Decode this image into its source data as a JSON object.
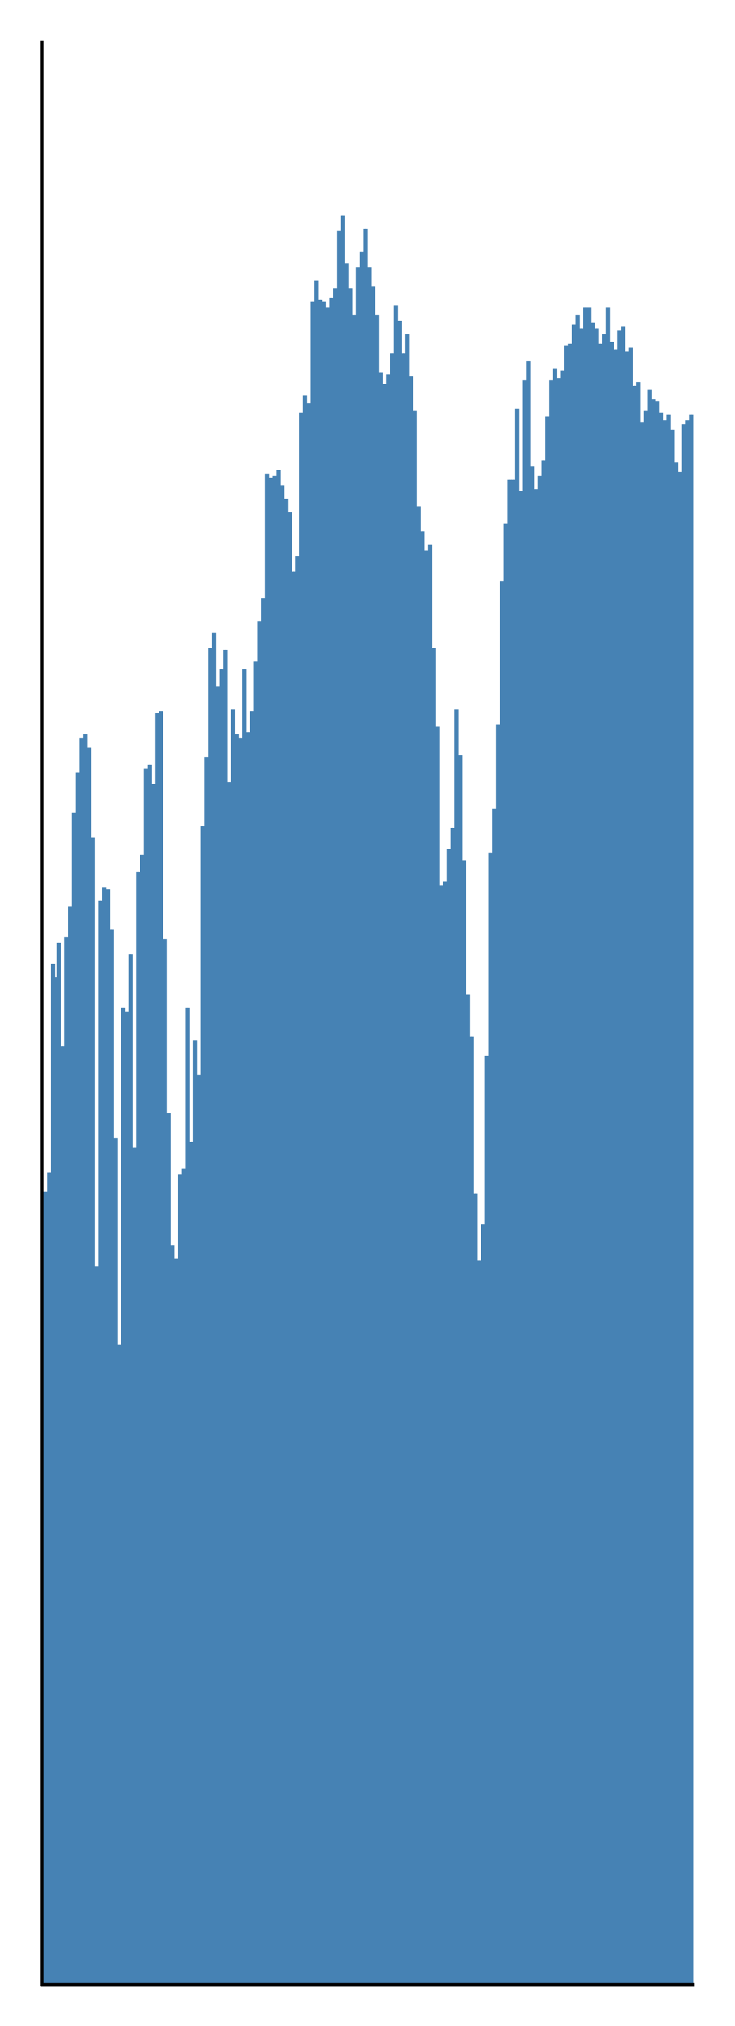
{
  "chart_data": {
    "type": "bar",
    "title": "",
    "xlabel": "",
    "ylabel": "",
    "grid": false,
    "legend": "none",
    "bar_color": "#4682b4",
    "axis_color": "#000000",
    "ylim": [
      0,
      1
    ],
    "values": [
      0.414,
      0.414,
      0.424,
      0.424,
      0.533,
      0.533,
      0.526,
      0.544,
      0.544,
      0.49,
      0.49,
      0.547,
      0.547,
      0.563,
      0.563,
      0.612,
      0.612,
      0.633,
      0.633,
      0.651,
      0.651,
      0.653,
      0.653,
      0.646,
      0.646,
      0.599,
      0.599,
      0.375,
      0.375,
      0.566,
      0.566,
      0.573,
      0.573,
      0.572,
      0.572,
      0.551,
      0.551,
      0.442,
      0.442,
      0.334,
      0.334,
      0.51,
      0.51,
      0.508,
      0.508,
      0.538,
      0.538,
      0.437,
      0.437,
      0.581,
      0.581,
      0.59,
      0.59,
      0.635,
      0.635,
      0.637,
      0.637,
      0.627,
      0.627,
      0.664,
      0.664,
      0.665,
      0.665,
      0.546,
      0.546,
      0.455,
      0.455,
      0.386,
      0.386,
      0.379,
      0.379,
      0.423,
      0.423,
      0.426,
      0.426,
      0.51,
      0.51,
      0.44,
      0.44,
      0.493,
      0.493,
      0.475,
      0.475,
      0.605,
      0.605,
      0.641,
      0.641,
      0.698,
      0.698,
      0.706,
      0.706,
      0.678,
      0.678,
      0.687,
      0.687,
      0.697,
      0.697,
      0.628,
      0.628,
      0.666,
      0.666,
      0.653,
      0.653,
      0.651,
      0.651,
      0.687,
      0.687,
      0.654,
      0.654,
      0.665,
      0.665,
      0.691,
      0.691,
      0.712,
      0.712,
      0.724,
      0.724,
      0.789,
      0.789,
      0.787,
      0.787,
      0.788,
      0.788,
      0.791,
      0.791,
      0.783,
      0.783,
      0.776,
      0.776,
      0.769,
      0.769,
      0.738,
      0.738,
      0.746,
      0.746,
      0.821,
      0.821,
      0.83,
      0.83,
      0.826,
      0.826,
      0.879,
      0.879,
      0.89,
      0.89,
      0.88,
      0.88,
      0.879,
      0.879,
      0.876,
      0.876,
      0.881,
      0.881,
      0.886,
      0.886,
      0.916,
      0.916,
      0.924,
      0.924,
      0.899,
      0.899,
      0.886,
      0.886,
      0.872,
      0.872,
      0.897,
      0.897,
      0.905,
      0.905,
      0.917,
      0.917,
      0.897,
      0.897,
      0.887,
      0.887,
      0.872,
      0.872,
      0.842,
      0.842,
      0.836,
      0.836,
      0.841,
      0.841,
      0.852,
      0.852,
      0.877,
      0.877,
      0.869,
      0.869,
      0.852,
      0.852,
      0.862,
      0.862,
      0.84,
      0.84,
      0.822,
      0.822,
      0.772,
      0.772,
      0.759,
      0.759,
      0.749,
      0.749,
      0.752,
      0.752,
      0.698,
      0.698,
      0.657,
      0.657,
      0.574,
      0.574,
      0.576,
      0.576,
      0.593,
      0.593,
      0.604,
      0.604,
      0.666,
      0.666,
      0.642,
      0.642,
      0.587,
      0.587,
      0.517,
      0.517,
      0.495,
      0.495,
      0.413,
      0.413,
      0.378,
      0.378,
      0.397,
      0.397,
      0.485,
      0.485,
      0.591,
      0.591,
      0.614,
      0.614,
      0.658,
      0.658,
      0.733,
      0.733,
      0.763,
      0.763,
      0.786,
      0.786,
      0.786,
      0.786,
      0.823,
      0.823,
      0.78,
      0.78,
      0.838,
      0.838,
      0.848,
      0.848,
      0.793,
      0.793,
      0.781,
      0.781,
      0.788,
      0.788,
      0.796,
      0.796,
      0.819,
      0.819,
      0.838,
      0.838,
      0.844,
      0.844,
      0.839,
      0.839,
      0.843,
      0.843,
      0.856,
      0.856,
      0.857,
      0.857,
      0.867,
      0.867,
      0.872,
      0.872,
      0.865,
      0.865,
      0.876,
      0.876,
      0.876,
      0.876,
      0.868,
      0.868,
      0.865,
      0.865,
      0.857,
      0.857,
      0.862,
      0.862,
      0.876,
      0.876,
      0.858,
      0.858,
      0.854,
      0.854,
      0.864,
      0.864,
      0.866,
      0.866,
      0.853,
      0.853,
      0.855,
      0.855,
      0.835,
      0.835,
      0.837,
      0.837,
      0.816,
      0.816,
      0.822,
      0.822,
      0.833,
      0.833,
      0.828,
      0.828,
      0.827,
      0.827,
      0.821,
      0.821,
      0.817,
      0.817,
      0.82,
      0.82,
      0.812,
      0.812,
      0.795,
      0.795,
      0.79,
      0.79,
      0.815,
      0.815,
      0.817,
      0.817,
      0.82,
      0.82
    ]
  }
}
